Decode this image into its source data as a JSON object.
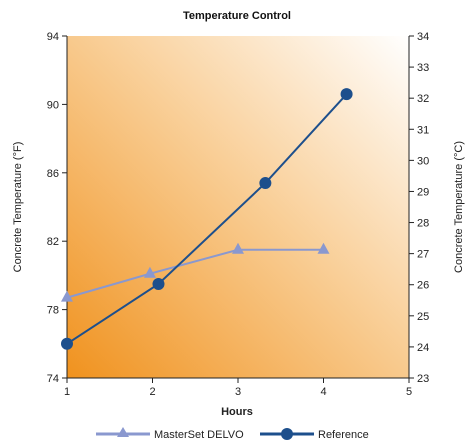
{
  "chart_data": {
    "type": "line",
    "title": "Temperature Control",
    "xlabel": "Hours",
    "ylabel": "Concrete Temperature (°F)",
    "ylabel_right": "Concrete Temperature (°C)",
    "xlim": [
      1,
      5
    ],
    "ylim": [
      74,
      94
    ],
    "ylim_right": [
      23,
      34
    ],
    "x_ticks": [
      1,
      2,
      3,
      4,
      5
    ],
    "y_ticks": [
      74,
      78,
      82,
      86,
      90,
      94
    ],
    "y_ticks_right": [
      23,
      24,
      25,
      26,
      27,
      28,
      29,
      30,
      31,
      32,
      33,
      34
    ],
    "legend_position": "bottom",
    "grid": false,
    "background": "orange gradient",
    "series": [
      {
        "name": "MasterSet DELVO",
        "marker": "triangle",
        "color": "#8a98cf",
        "x": [
          1,
          1.97,
          3,
          4
        ],
        "y": [
          78.7,
          80.1,
          81.5,
          81.5
        ]
      },
      {
        "name": "Reference",
        "marker": "circle",
        "color": "#1d4f8c",
        "x": [
          1,
          2.07,
          3.32,
          4.27
        ],
        "y": [
          76,
          79.5,
          85.4,
          90.6
        ]
      }
    ]
  }
}
